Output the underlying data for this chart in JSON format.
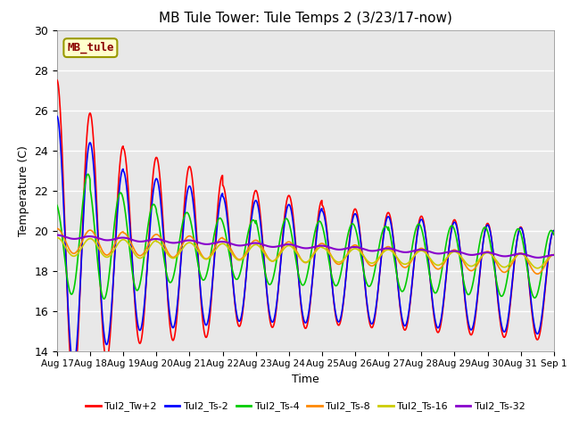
{
  "title": "MB Tule Tower: Tule Temps 2 (3/23/17-now)",
  "xlabel": "Time",
  "ylabel": "Temperature (C)",
  "ylim": [
    14,
    30
  ],
  "background_color": "#e8e8e8",
  "grid_color": "white",
  "annotation_text": "MB_tule",
  "annotation_color": "#8b0000",
  "annotation_bg": "#ffffcc",
  "annotation_border": "#999900",
  "xtick_labels": [
    "Aug 17",
    "Aug 18",
    "Aug 19",
    "Aug 20",
    "Aug 21",
    "Aug 22",
    "Aug 23",
    "Aug 24",
    "Aug 25",
    "Aug 26",
    "Aug 27",
    "Aug 28",
    "Aug 29",
    "Aug 30",
    "Aug 31",
    "Sep 1"
  ],
  "legend_labels": [
    "Tul2_Tw+2",
    "Tul2_Ts-2",
    "Tul2_Ts-4",
    "Tul2_Ts-8",
    "Tul2_Ts-16",
    "Tul2_Ts-32"
  ],
  "line_colors": [
    "#ff0000",
    "#0000ff",
    "#00cc00",
    "#ff8800",
    "#cccc00",
    "#8800cc"
  ]
}
